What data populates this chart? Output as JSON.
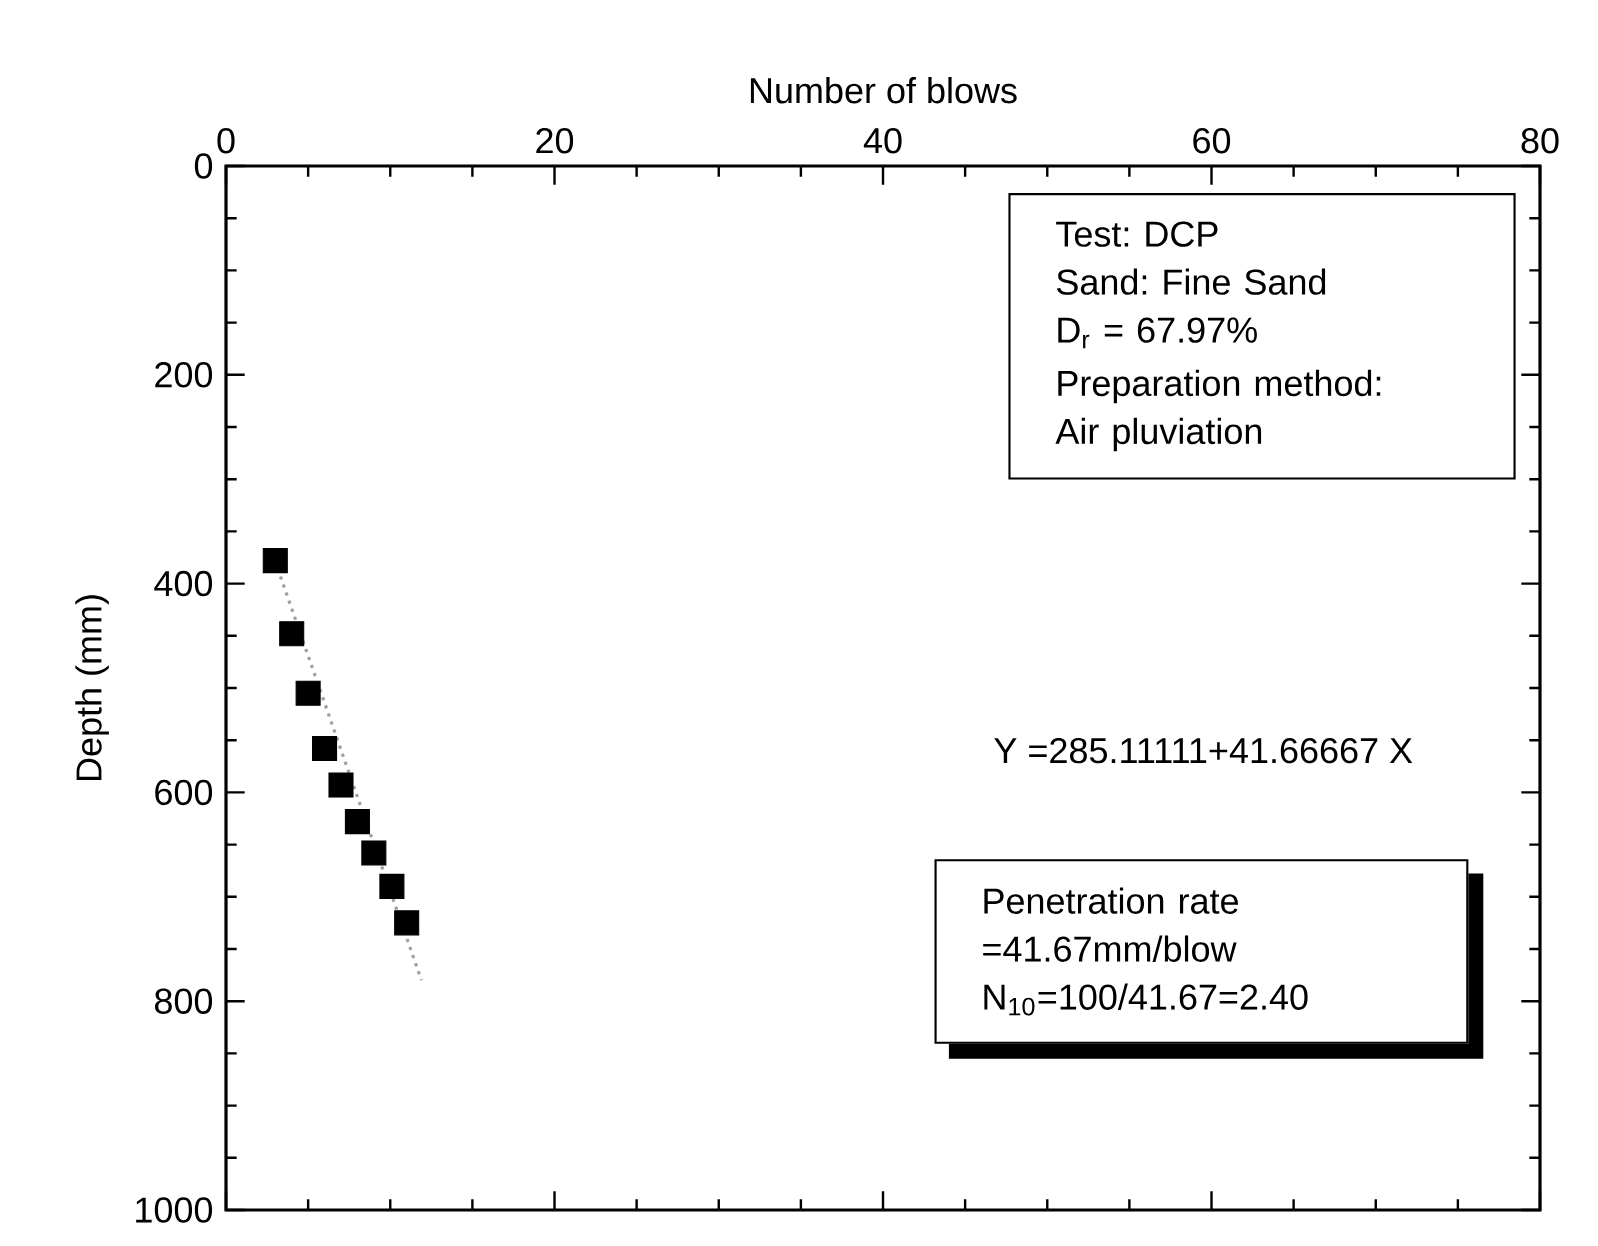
{
  "chart_data": {
    "type": "scatter",
    "xlabel": "Number of blows",
    "ylabel": "Depth (mm)",
    "xlim": [
      0,
      80
    ],
    "xticks": [
      0,
      20,
      40,
      60,
      80
    ],
    "ylim": [
      1000,
      0
    ],
    "yticks": [
      0,
      200,
      400,
      600,
      800,
      1000
    ],
    "grid": false,
    "series": [
      {
        "color": "#000000",
        "marker": "square",
        "x": [
          3.0,
          4.0,
          5.0,
          6.0,
          7.0,
          8.0,
          9.0,
          10.1,
          11.0
        ],
        "values": [
          378,
          448,
          505,
          558,
          593,
          628,
          658,
          690,
          725
        ]
      },
      {
        "type": "line",
        "color": "#a0a0a0",
        "line_style": "dotted",
        "marker": "none",
        "x": [
          2.8,
          11.9
        ],
        "values": [
          370,
          780
        ]
      }
    ],
    "annotations": [
      "Test: DCP",
      "Sand: Fine Sand",
      "D$_{r}$ = 67.97%",
      "Preparation method:",
      "Air pluviation",
      "Y =285.11111+41.66667 X",
      "Penetration rate",
      "=41.67mm/blow",
      "N$_{10}$=100/41.67=2.40"
    ]
  }
}
